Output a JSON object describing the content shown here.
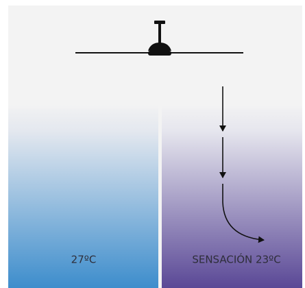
{
  "panels": [
    {
      "label": "27ºC"
    },
    {
      "label": "SENSACIÓN 23ºC"
    }
  ]
}
